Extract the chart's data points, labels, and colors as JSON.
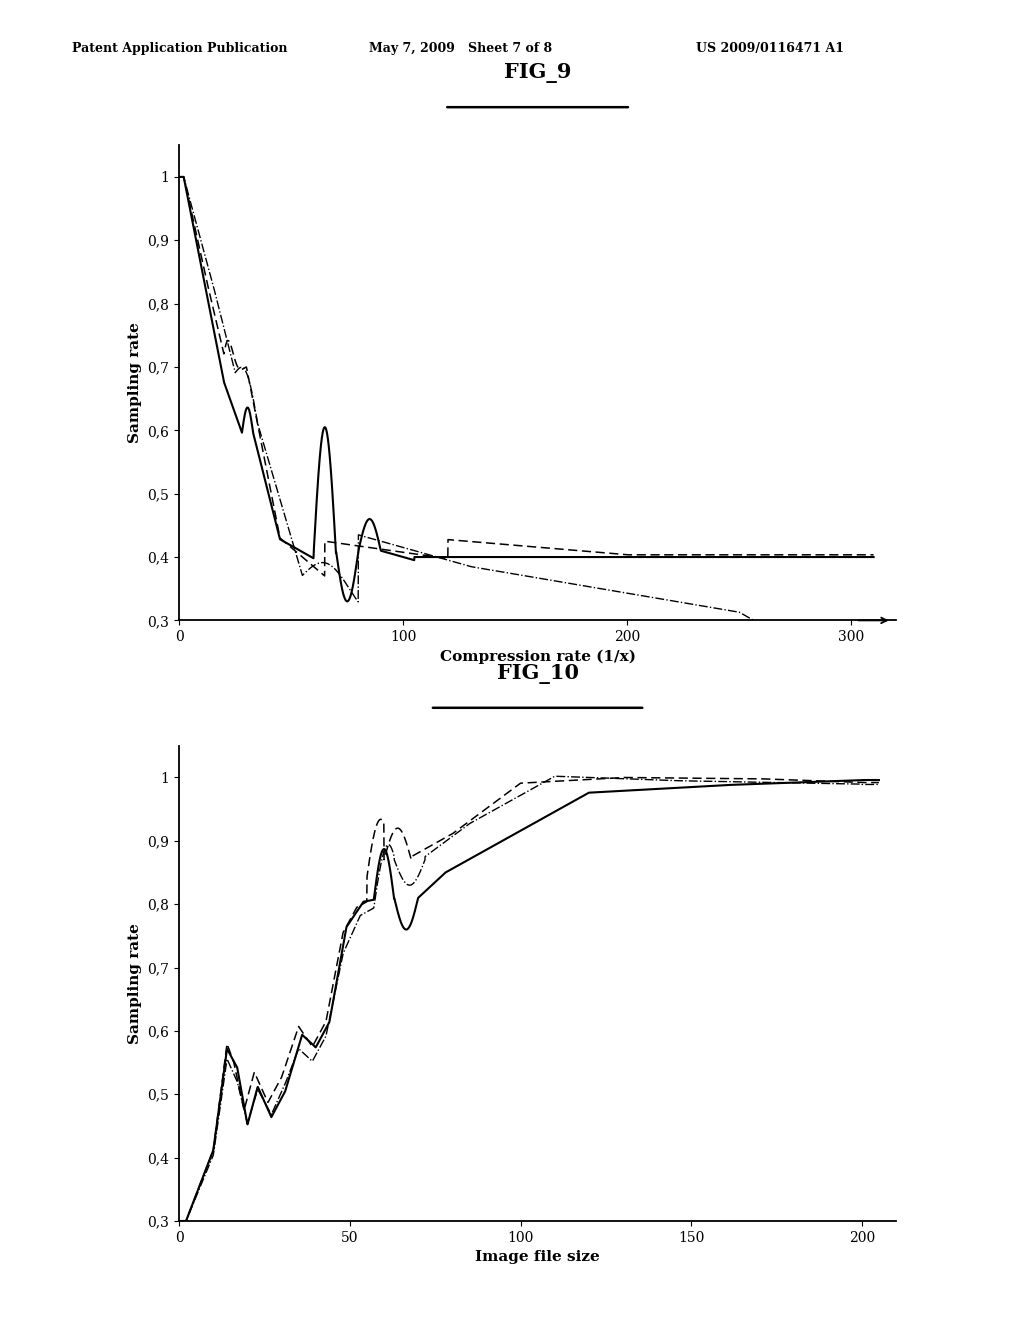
{
  "fig9_title": "FIG_9",
  "fig10_title": "FIG_10",
  "header_left": "Patent Application Publication",
  "header_mid": "May 7, 2009   Sheet 7 of 8",
  "header_right": "US 2009/0116471 A1",
  "fig9_xlabel": "Compression rate (1/x)",
  "fig9_ylabel": "Sampling rate",
  "fig9_xlim": [
    0,
    320
  ],
  "fig9_ylim": [
    0.3,
    1.05
  ],
  "fig9_xticks": [
    0,
    100,
    200,
    300
  ],
  "fig9_yticks": [
    0.3,
    0.4,
    0.5,
    0.6,
    0.7,
    0.8,
    0.9,
    1.0
  ],
  "fig9_ytick_labels": [
    "0,3",
    "0,4",
    "0,5",
    "0,6",
    "0,7",
    "0,8",
    "0,9",
    "1"
  ],
  "fig10_xlabel": "Image file size",
  "fig10_ylabel": "Sampling rate",
  "fig10_xlim": [
    0,
    210
  ],
  "fig10_ylim": [
    0.3,
    1.05
  ],
  "fig10_xticks": [
    0,
    50,
    100,
    150,
    200
  ],
  "fig10_yticks": [
    0.3,
    0.4,
    0.5,
    0.6,
    0.7,
    0.8,
    0.9,
    1.0
  ],
  "fig10_ytick_labels": [
    "0,3",
    "0,4",
    "0,5",
    "0,6",
    "0,7",
    "0,8",
    "0,9",
    "1"
  ],
  "bg_color": "#ffffff",
  "line_color": "#000000"
}
